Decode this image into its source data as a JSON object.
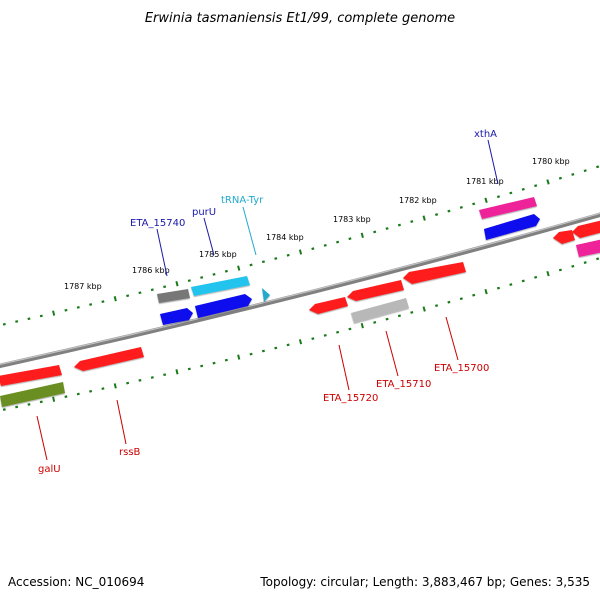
{
  "title": "Erwinia tasmaniensis Et1/99, complete genome",
  "footer": {
    "accession": "Accession: NC_010694",
    "stats": "Topology: circular; Length: 3,883,467 bp; Genes: 3,535"
  },
  "colors": {
    "backbone": "#808080",
    "tick": "#1a7a1a",
    "forward_label": "#1a1aa8",
    "reverse_label": "#cc0000",
    "trna_label": "#22aacc",
    "red_gene": "#ff1a1a",
    "blue_gene": "#1010ee",
    "pink_gene": "#ee2299",
    "gray_gene": "#777777",
    "lightgray_gene": "#b8b8b8",
    "olive_gene": "#6b8e23",
    "cyan_gene": "#22c4ee"
  },
  "scale_labels": [
    "1787 kbp",
    "1786 kbp",
    "1785 kbp",
    "1784 kbp",
    "1783 kbp",
    "1782 kbp",
    "1781 kbp",
    "1780 kbp"
  ],
  "gene_labels": {
    "forward": [
      "ETA_15740",
      "purU",
      "tRNA-Tyr",
      "xthA"
    ],
    "reverse": [
      "galU",
      "rssB",
      "ETA_15720",
      "ETA_15710",
      "ETA_15700"
    ]
  }
}
